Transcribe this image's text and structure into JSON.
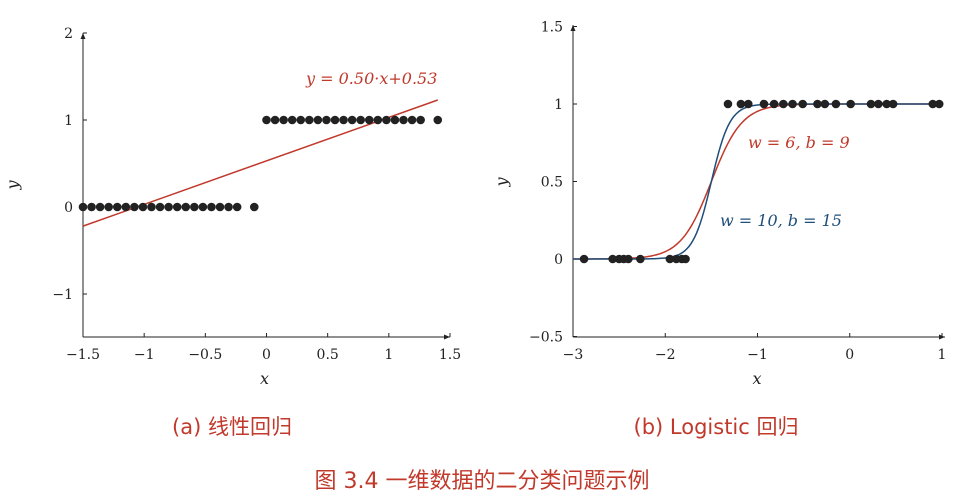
{
  "figure_caption": "图 3.4   一维数据的二分类问题示例",
  "colors": {
    "red": "#c0392b",
    "blue": "#1f4e79",
    "points": "#222222",
    "axis": "#222222"
  },
  "chart_data": [
    {
      "type": "scatter",
      "subtitle": "(a) 线性回归",
      "xlabel": "x",
      "ylabel": "y",
      "xlim": [
        -1.5,
        1.5
      ],
      "ylim": [
        -1.5,
        2
      ],
      "xticks": [
        -1.5,
        -1,
        -0.5,
        0,
        0.5,
        1,
        1.5
      ],
      "xtick_labels": [
        "−1.5",
        "−1",
        "−0.5",
        "0",
        "0.5",
        "1",
        "1.5"
      ],
      "yticks": [
        -1,
        0,
        1,
        2
      ],
      "ytick_labels": [
        "−1",
        "0",
        "1",
        "2"
      ],
      "points": [
        {
          "x": -1.5,
          "y": 0
        },
        {
          "x": -1.43,
          "y": 0
        },
        {
          "x": -1.36,
          "y": 0
        },
        {
          "x": -1.29,
          "y": 0
        },
        {
          "x": -1.22,
          "y": 0
        },
        {
          "x": -1.15,
          "y": 0
        },
        {
          "x": -1.08,
          "y": 0
        },
        {
          "x": -1.01,
          "y": 0
        },
        {
          "x": -0.94,
          "y": 0
        },
        {
          "x": -0.87,
          "y": 0
        },
        {
          "x": -0.8,
          "y": 0
        },
        {
          "x": -0.73,
          "y": 0
        },
        {
          "x": -0.66,
          "y": 0
        },
        {
          "x": -0.59,
          "y": 0
        },
        {
          "x": -0.52,
          "y": 0
        },
        {
          "x": -0.45,
          "y": 0
        },
        {
          "x": -0.38,
          "y": 0
        },
        {
          "x": -0.31,
          "y": 0
        },
        {
          "x": -0.24,
          "y": 0
        },
        {
          "x": -0.1,
          "y": 0
        },
        {
          "x": 0,
          "y": 1
        },
        {
          "x": 0.07,
          "y": 1
        },
        {
          "x": 0.14,
          "y": 1
        },
        {
          "x": 0.21,
          "y": 1
        },
        {
          "x": 0.28,
          "y": 1
        },
        {
          "x": 0.35,
          "y": 1
        },
        {
          "x": 0.42,
          "y": 1
        },
        {
          "x": 0.49,
          "y": 1
        },
        {
          "x": 0.56,
          "y": 1
        },
        {
          "x": 0.63,
          "y": 1
        },
        {
          "x": 0.7,
          "y": 1
        },
        {
          "x": 0.77,
          "y": 1
        },
        {
          "x": 0.84,
          "y": 1
        },
        {
          "x": 0.91,
          "y": 1
        },
        {
          "x": 0.98,
          "y": 1
        },
        {
          "x": 1.05,
          "y": 1
        },
        {
          "x": 1.12,
          "y": 1
        },
        {
          "x": 1.19,
          "y": 1
        },
        {
          "x": 1.26,
          "y": 1
        },
        {
          "x": 1.4,
          "y": 1
        }
      ],
      "lines": [
        {
          "kind": "linear",
          "slope": 0.5,
          "intercept": 0.53,
          "x_range": [
            -1.5,
            1.4
          ],
          "color": "#c0392b",
          "label": "y = 0.50·x+0.53"
        }
      ]
    },
    {
      "type": "scatter",
      "subtitle": "(b) Logistic 回归",
      "xlabel": "x",
      "ylabel": "y",
      "xlim": [
        -3,
        1
      ],
      "ylim": [
        -0.5,
        1.5
      ],
      "xticks": [
        -3,
        -2,
        -1,
        0,
        1
      ],
      "xtick_labels": [
        "−3",
        "−2",
        "−1",
        "0",
        "1"
      ],
      "yticks": [
        -0.5,
        0,
        0.5,
        1,
        1.5
      ],
      "ytick_labels": [
        "−0.5",
        "0",
        "0.5",
        "1",
        "1.5"
      ],
      "points": [
        {
          "x": -2.88,
          "y": 0
        },
        {
          "x": -2.57,
          "y": 0
        },
        {
          "x": -2.5,
          "y": 0
        },
        {
          "x": -2.45,
          "y": 0
        },
        {
          "x": -2.4,
          "y": 0
        },
        {
          "x": -2.27,
          "y": 0
        },
        {
          "x": -1.95,
          "y": 0
        },
        {
          "x": -1.88,
          "y": 0
        },
        {
          "x": -1.82,
          "y": 0
        },
        {
          "x": -1.78,
          "y": 0
        },
        {
          "x": -1.32,
          "y": 1
        },
        {
          "x": -1.18,
          "y": 1
        },
        {
          "x": -1.1,
          "y": 1
        },
        {
          "x": -0.93,
          "y": 1
        },
        {
          "x": -0.82,
          "y": 1
        },
        {
          "x": -0.72,
          "y": 1
        },
        {
          "x": -0.62,
          "y": 1
        },
        {
          "x": -0.51,
          "y": 1
        },
        {
          "x": -0.35,
          "y": 1
        },
        {
          "x": -0.27,
          "y": 1
        },
        {
          "x": -0.15,
          "y": 1
        },
        {
          "x": 0.01,
          "y": 1
        },
        {
          "x": 0.23,
          "y": 1
        },
        {
          "x": 0.31,
          "y": 1
        },
        {
          "x": 0.4,
          "y": 1
        },
        {
          "x": 0.47,
          "y": 1
        },
        {
          "x": 0.9,
          "y": 1
        },
        {
          "x": 0.97,
          "y": 1
        }
      ],
      "lines": [
        {
          "kind": "sigmoid",
          "w": 6,
          "b": 9,
          "x_range": [
            -3,
            1
          ],
          "color": "#c0392b",
          "label": "w = 6, b = 9"
        },
        {
          "kind": "sigmoid",
          "w": 10,
          "b": 15,
          "x_range": [
            -3,
            1
          ],
          "color": "#1f4e79",
          "label": "w = 10, b = 15"
        }
      ]
    }
  ]
}
